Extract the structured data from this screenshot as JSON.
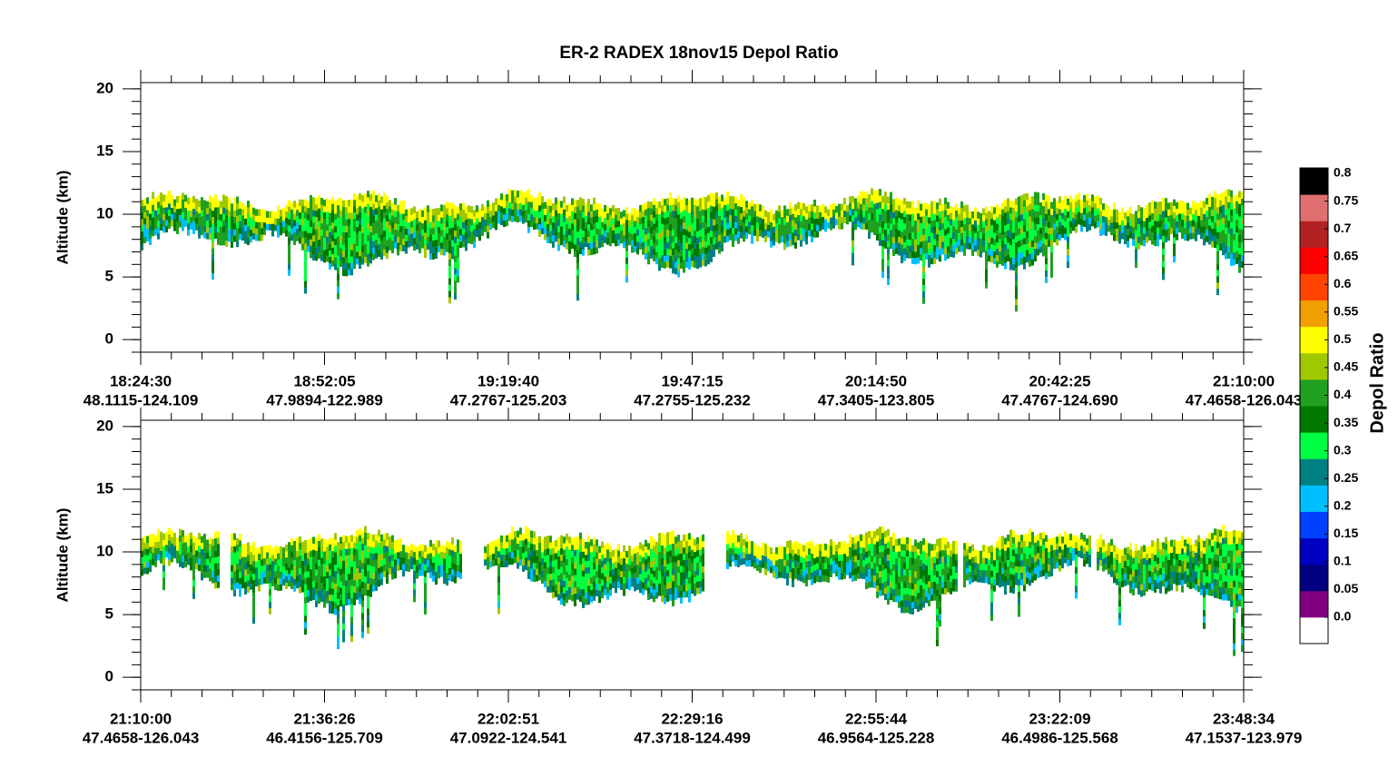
{
  "title": "ER-2 RADEX 18nov15 Depol Ratio",
  "chart_data": [
    {
      "type": "curtain",
      "ylabel": "Altitude (km)",
      "ylim": [
        -1,
        20.5
      ],
      "yticks": [
        0,
        5,
        10,
        15,
        20
      ],
      "xticks": [
        "18:24:30",
        "18:52:05",
        "19:19:40",
        "19:47:15",
        "20:14:50",
        "20:42:25",
        "21:10:00"
      ],
      "xtick_sublabels": [
        "48.1115-124.109",
        "47.9894-122.989",
        "47.2767-125.203",
        "47.2755-125.232",
        "47.3405-123.805",
        "47.4767-124.690",
        "47.4658-126.043"
      ]
    },
    {
      "type": "curtain",
      "ylabel": "Altitude (km)",
      "ylim": [
        -1,
        20.5
      ],
      "yticks": [
        0,
        5,
        10,
        15,
        20
      ],
      "xticks": [
        "21:10:00",
        "21:36:26",
        "22:02:51",
        "22:29:16",
        "22:55:44",
        "23:22:09",
        "23:48:34"
      ],
      "xtick_sublabels": [
        "47.4658-126.043",
        "46.4156-125.709",
        "47.0922-124.541",
        "47.3718-124.499",
        "46.9564-125.228",
        "46.4986-125.568",
        "47.1537-123.979"
      ]
    }
  ],
  "colorbar": {
    "label": "Depol Ratio",
    "ticks": [
      {
        "value": 0,
        "label": "0.0"
      },
      0.05,
      0.1,
      0.15,
      0.2,
      0.25,
      0.3,
      0.35,
      0.4,
      0.45,
      0.5,
      0.55,
      0.6,
      0.65,
      0.7,
      0.75,
      0.8
    ],
    "colors": [
      "#ffffff",
      "#800080",
      "#000080",
      "#0000c0",
      "#0040ff",
      "#00bfff",
      "#008080",
      "#00ff40",
      "#007800",
      "#20a020",
      "#a0c800",
      "#ffff00",
      "#f0a000",
      "#ff4500",
      "#ff0000",
      "#b22222",
      "#e07070",
      "#000000"
    ]
  }
}
